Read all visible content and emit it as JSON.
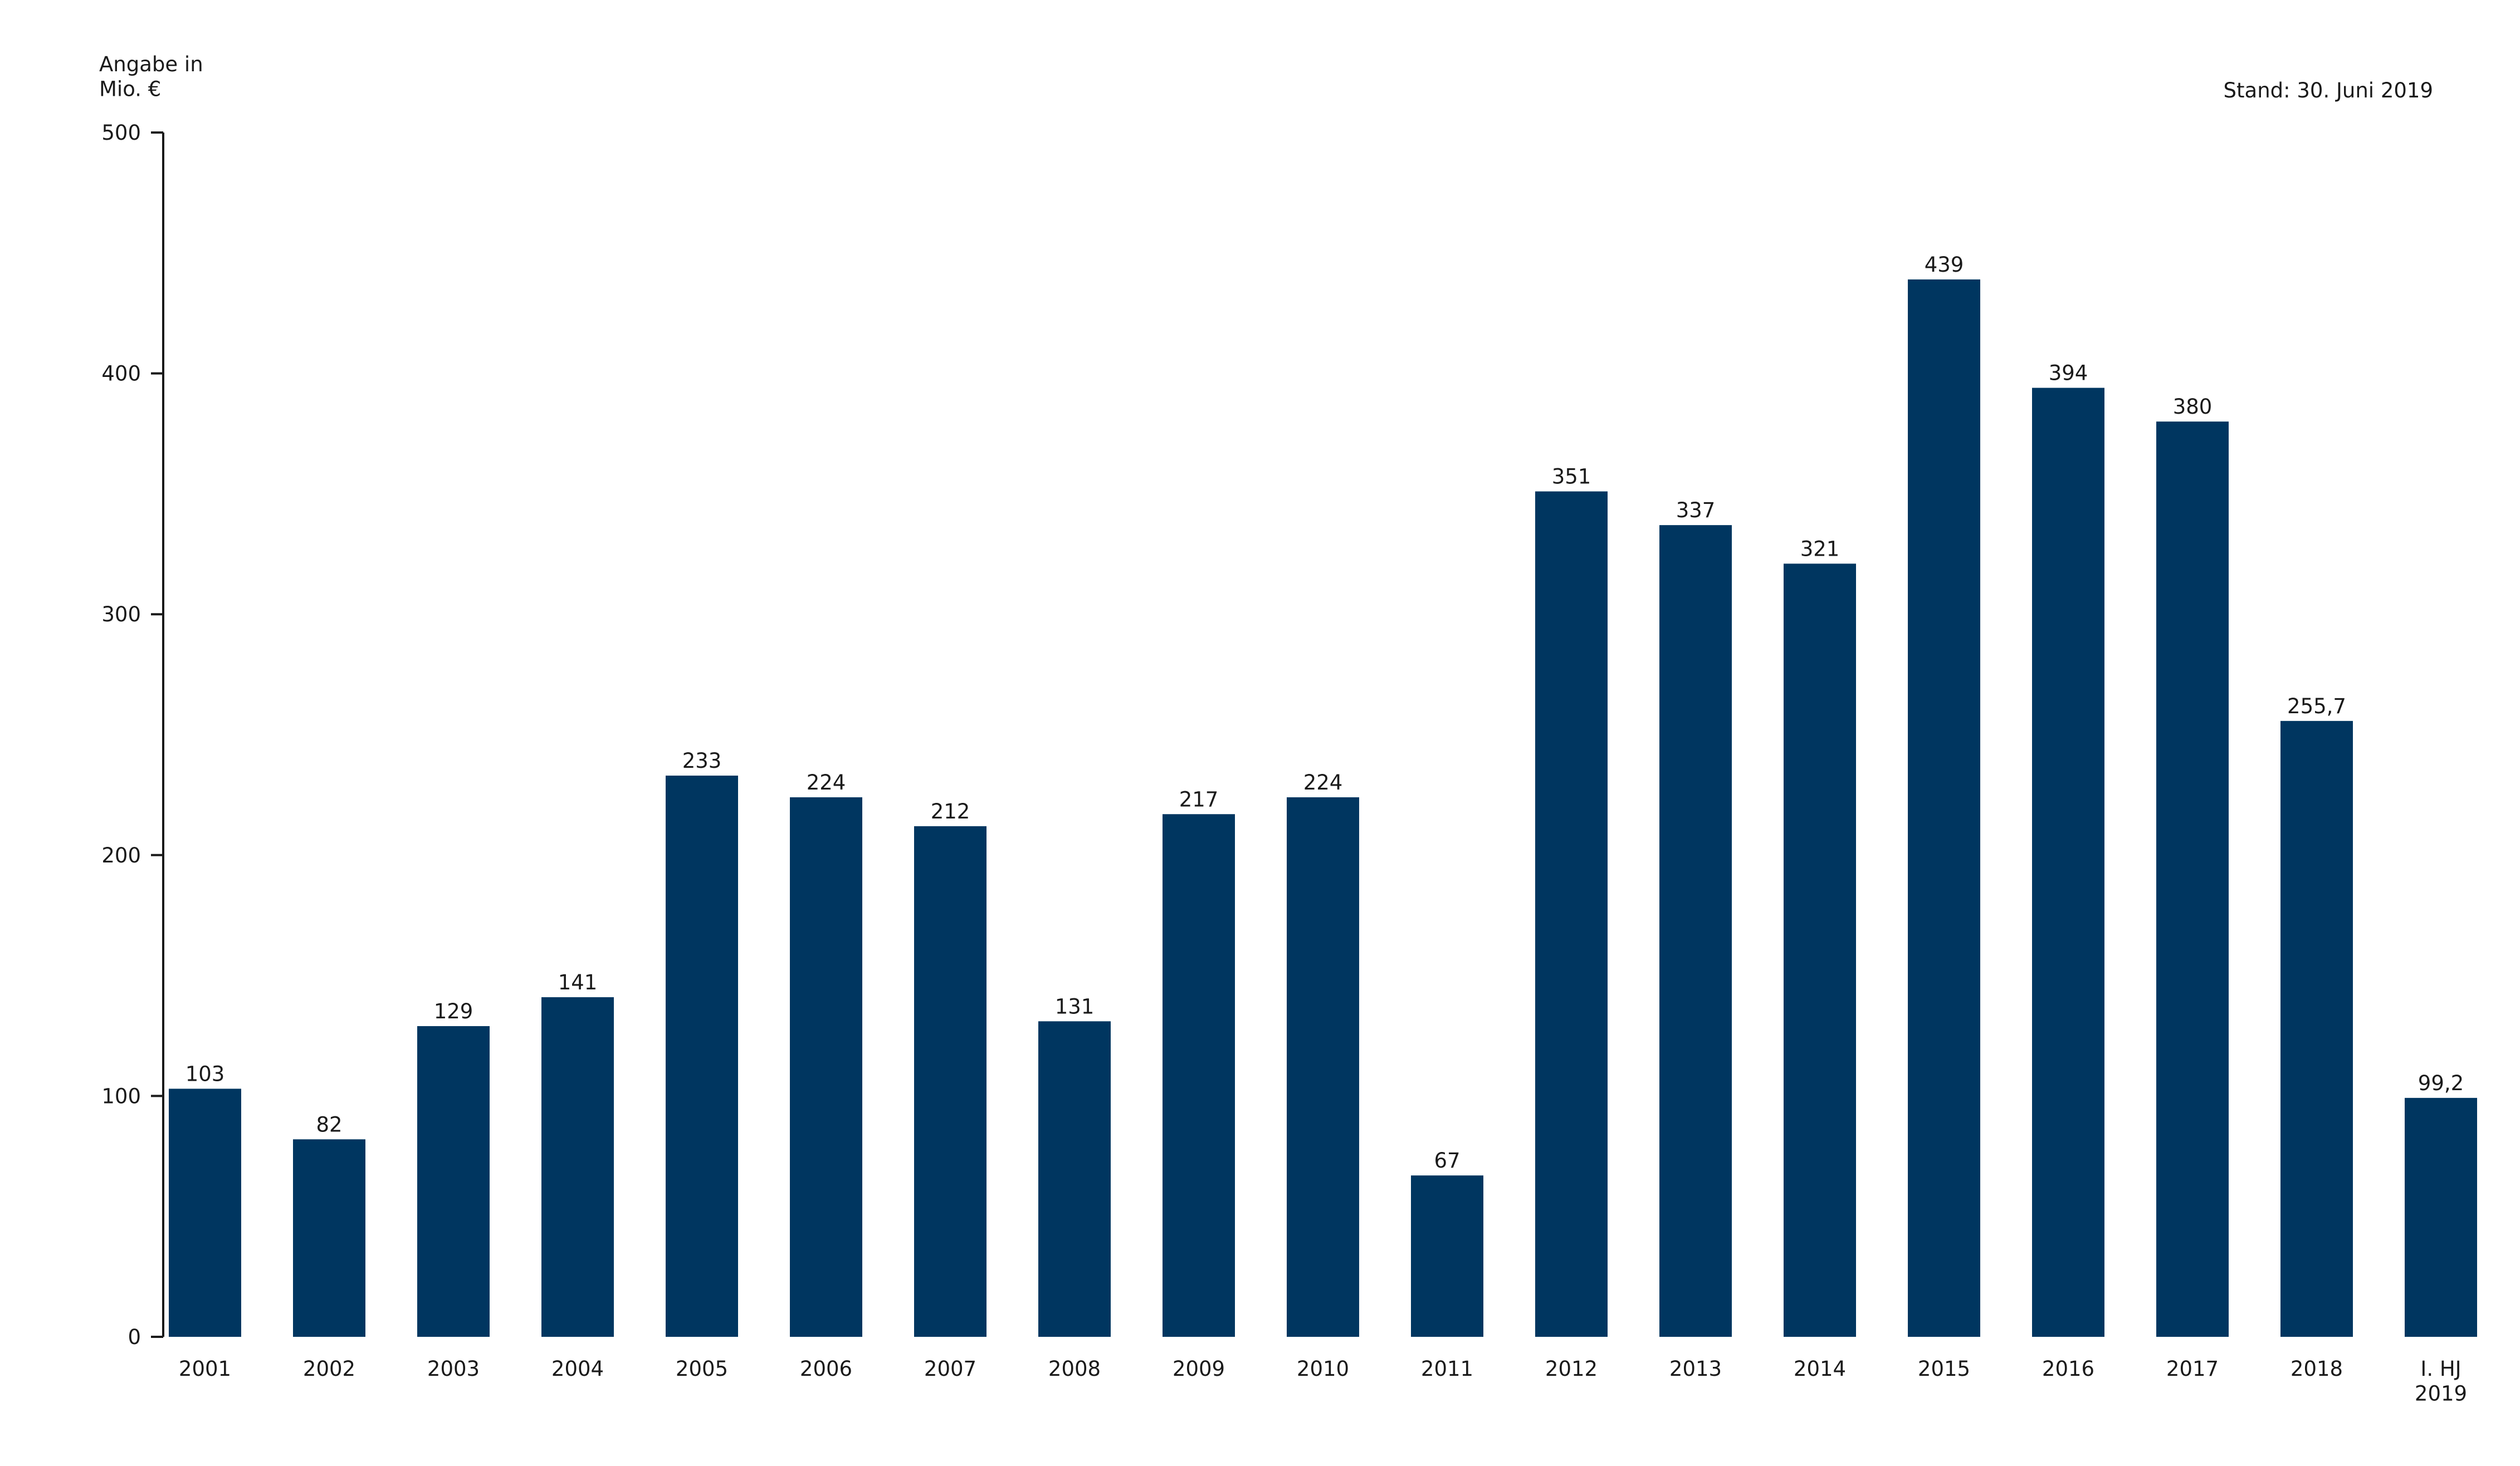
{
  "chart_data": {
    "type": "bar",
    "title": "Angabe in\nMio. €",
    "annotation": "Stand: 30. Juni 2019",
    "categories": [
      "2001",
      "2002",
      "2003",
      "2004",
      "2005",
      "2006",
      "2007",
      "2008",
      "2009",
      "2010",
      "2011",
      "2012",
      "2013",
      "2014",
      "2015",
      "2016",
      "2017",
      "2018",
      "I. HJ\n2019"
    ],
    "values": [
      103,
      82,
      129,
      141,
      233,
      224,
      212,
      131,
      217,
      224,
      67,
      351,
      337,
      321,
      439,
      394,
      380,
      255.7,
      99.2
    ],
    "value_labels": [
      "103",
      "82",
      "129",
      "141",
      "233",
      "224",
      "212",
      "131",
      "217",
      "224",
      "67",
      "351",
      "337",
      "321",
      "439",
      "394",
      "380",
      "255,7",
      "99,2"
    ],
    "color": "#003660",
    "ylim": [
      0,
      500
    ],
    "yticks": [
      0,
      100,
      200,
      300,
      400,
      500
    ],
    "grid": false
  }
}
